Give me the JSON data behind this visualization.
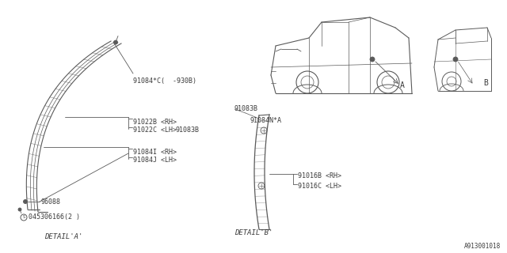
{
  "bg_color": "#ffffff",
  "line_color": "#5a5a5a",
  "text_color": "#3a3a3a",
  "diagram_id": "A913001018",
  "detail_a_label": "DETAIL'A'",
  "detail_b_label": "DETAIL'B'",
  "label_A": "A",
  "label_B": "B",
  "fs_small": 6.0,
  "fs_label": 6.5,
  "fs_id": 5.5
}
